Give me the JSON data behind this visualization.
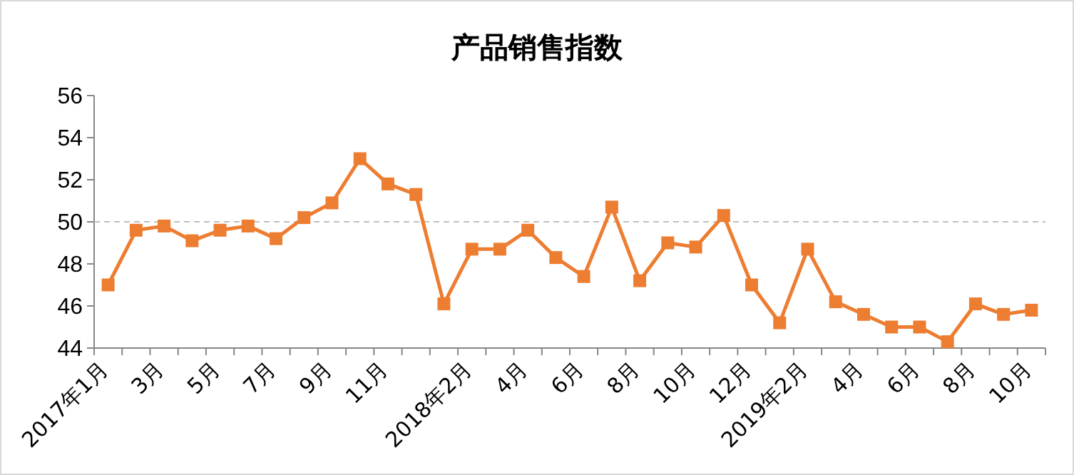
{
  "chart_data": {
    "type": "line",
    "title": "产品销售指数",
    "categories": [
      "2017年1月",
      null,
      "3月",
      null,
      "5月",
      null,
      "7月",
      null,
      "9月",
      null,
      "11月",
      null,
      null,
      "2018年2月",
      null,
      "4月",
      null,
      "6月",
      null,
      "8月",
      null,
      "10月",
      null,
      "12月",
      null,
      "2019年2月",
      null,
      "4月",
      null,
      "6月",
      null,
      "8月",
      null,
      "10月"
    ],
    "series": [
      {
        "color": "#ed7d31",
        "values": [
          47,
          49.6,
          49.8,
          49.1,
          49.6,
          49.8,
          49.2,
          50.2,
          50.9,
          53,
          51.8,
          51.3,
          46.1,
          48.7,
          48.7,
          49.6,
          48.3,
          47.4,
          50.7,
          47.2,
          49,
          48.8,
          50.3,
          47,
          45.2,
          48.7,
          46.2,
          45.6,
          45,
          45,
          44.3,
          46.1,
          45.6,
          45.8
        ]
      }
    ],
    "ylim": [
      44,
      56
    ],
    "yticks": [
      44,
      46,
      48,
      50,
      52,
      54,
      56
    ],
    "grid": false,
    "marker": "square",
    "line_style": "solid",
    "ref_lines": [
      {
        "axis": "y",
        "value": 50,
        "color": "#bfbfbf",
        "line_style": "dashed"
      }
    ]
  }
}
